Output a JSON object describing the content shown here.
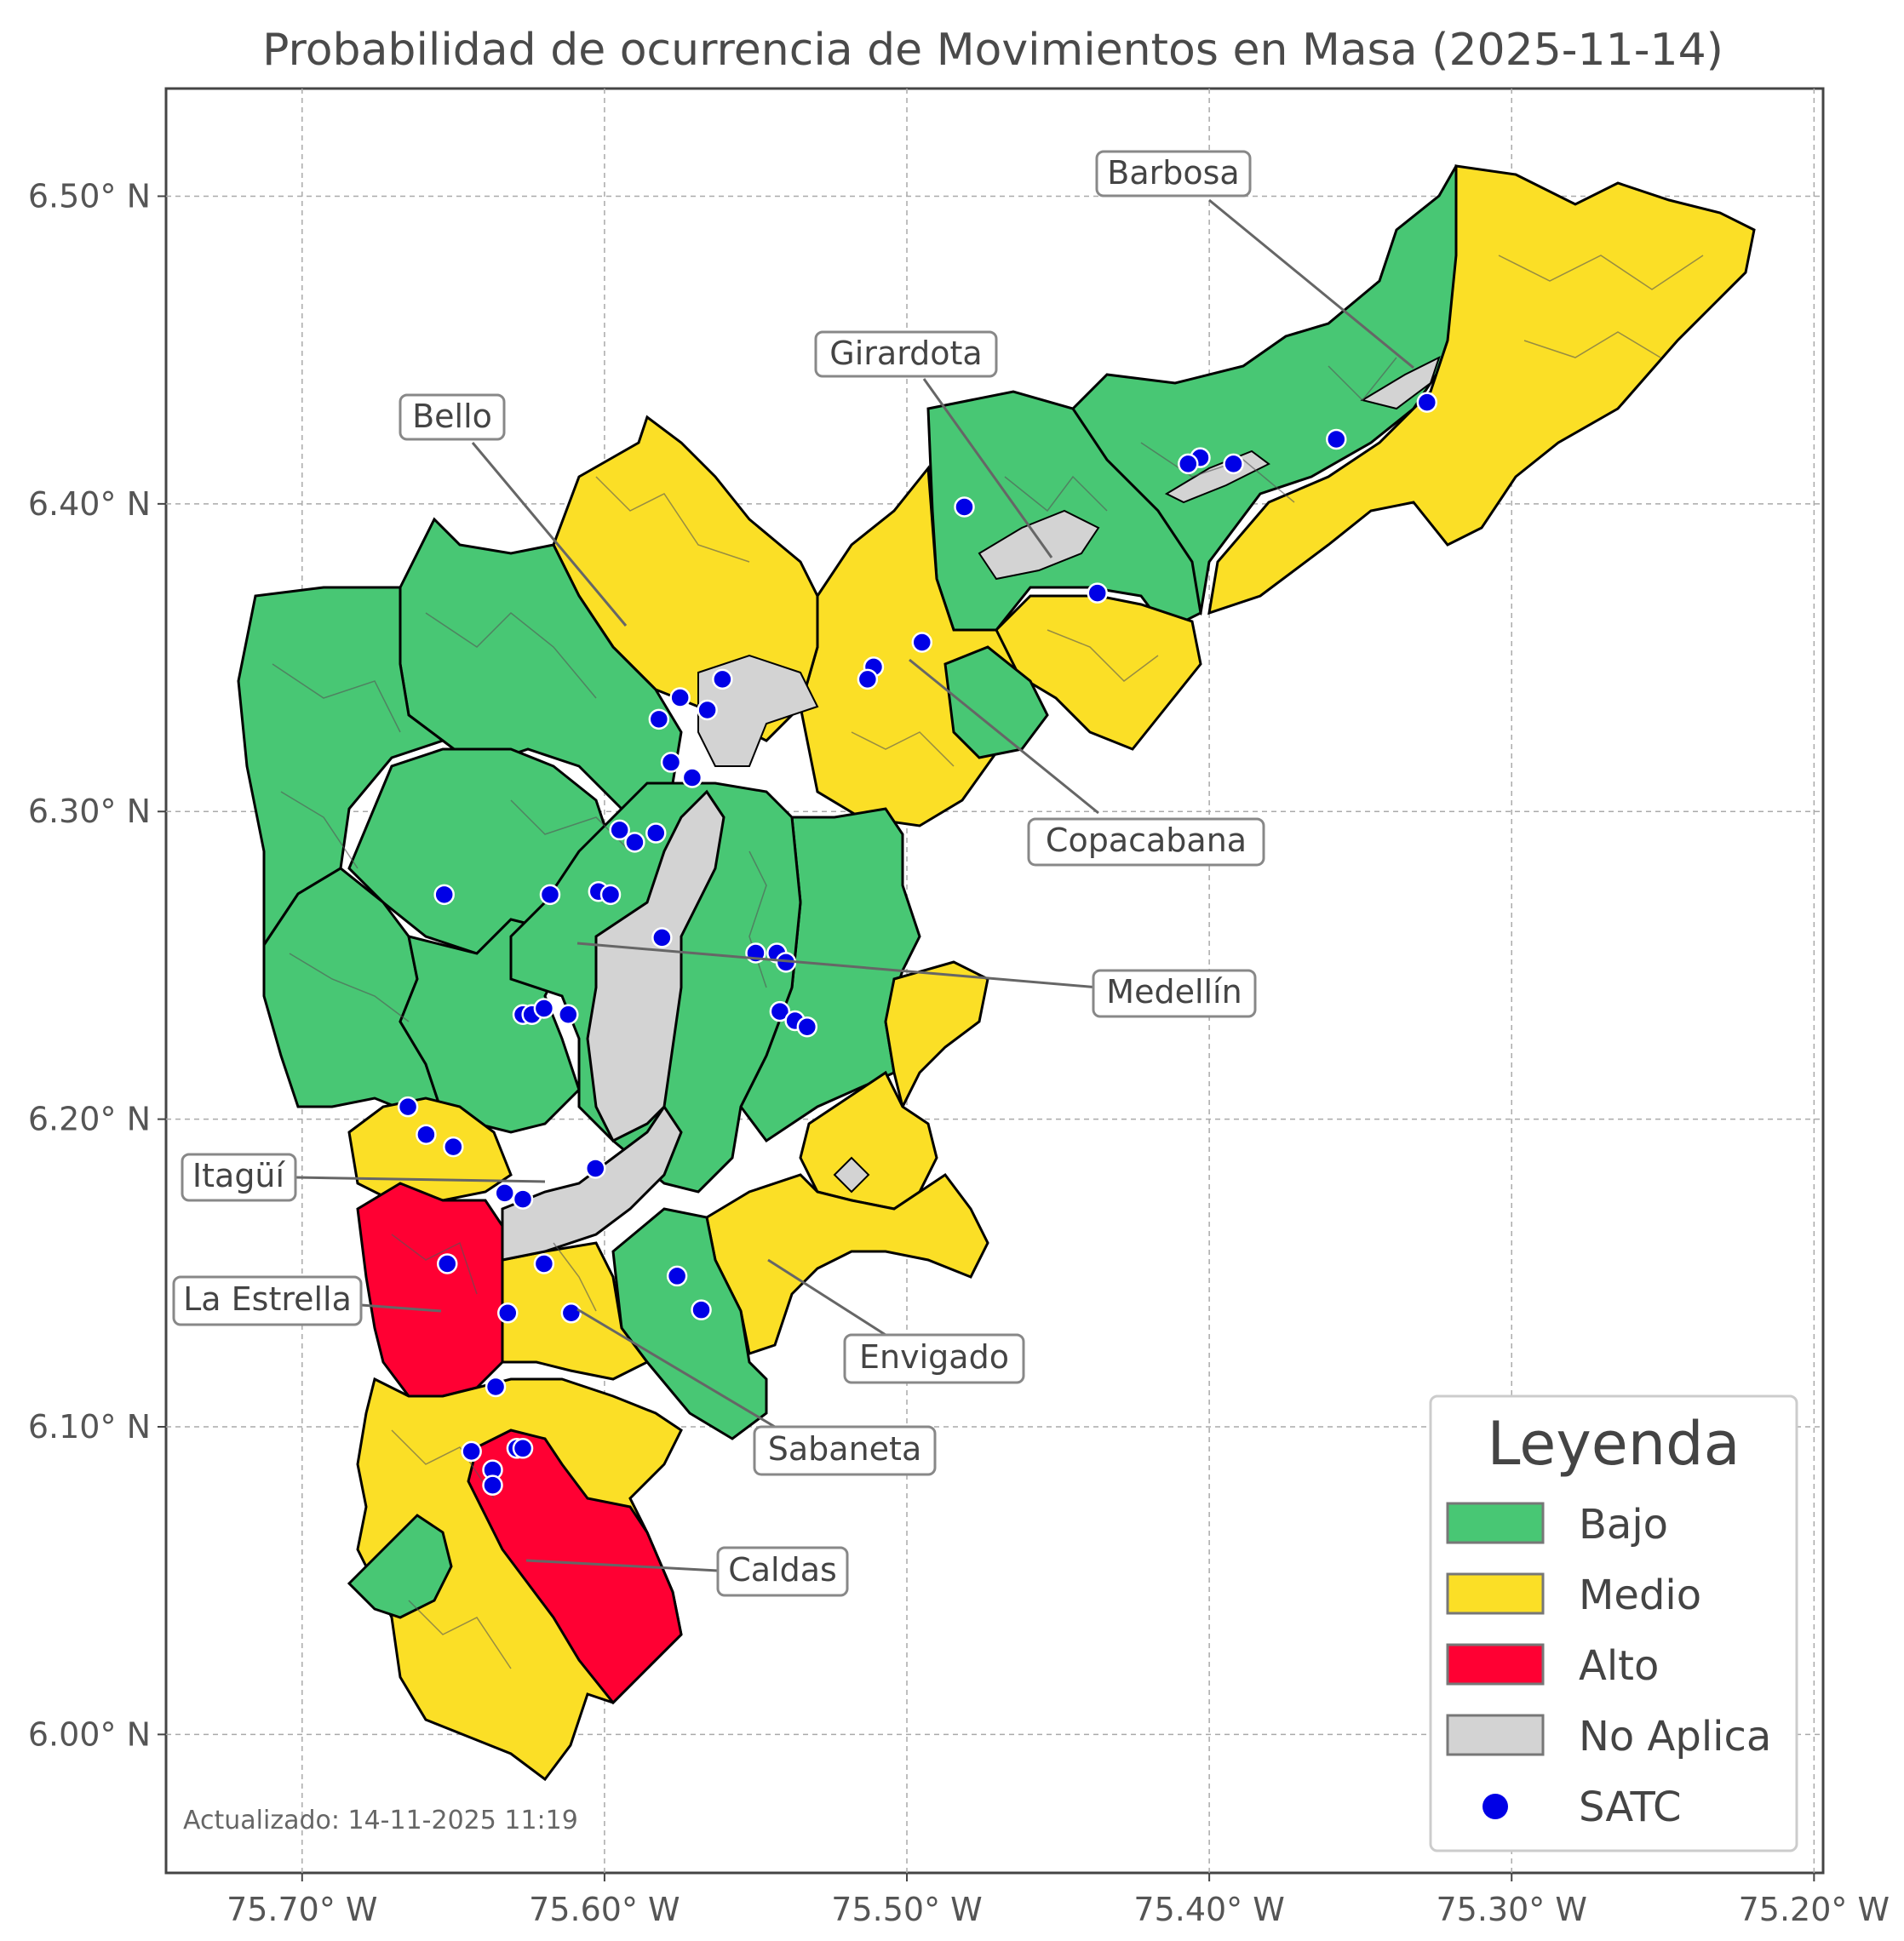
{
  "title": "Probabilidad de ocurrencia de Movimientos en Masa (2025-11-14)",
  "updated": "Actualizado: 14-11-2025 11:19",
  "colors": {
    "bajo": "#48c774",
    "medio": "#fbdf26",
    "alto": "#ff0033",
    "no_aplica": "#d3d3d3",
    "satc": "#0000e6"
  },
  "axes": {
    "lon_range": [
      -75.745,
      -75.197
    ],
    "lat_range": [
      5.955,
      6.535
    ],
    "x_ticks": [
      {
        "value": -75.7,
        "label": "75.70° W"
      },
      {
        "value": -75.6,
        "label": "75.60° W"
      },
      {
        "value": -75.5,
        "label": "75.50° W"
      },
      {
        "value": -75.4,
        "label": "75.40° W"
      },
      {
        "value": -75.3,
        "label": "75.30° W"
      },
      {
        "value": -75.2,
        "label": "75.20° W"
      }
    ],
    "y_ticks": [
      {
        "value": 6.5,
        "label": "6.50° N"
      },
      {
        "value": 6.4,
        "label": "6.40° N"
      },
      {
        "value": 6.3,
        "label": "6.30° N"
      },
      {
        "value": 6.2,
        "label": "6.20° N"
      },
      {
        "value": 6.1,
        "label": "6.10° N"
      },
      {
        "value": 6.0,
        "label": "6.00° N"
      }
    ],
    "grid": true
  },
  "municipalities": [
    {
      "name": "Barbosa",
      "lon": -75.332,
      "lat": 6.445
    },
    {
      "name": "Girardota",
      "lon": -75.45,
      "lat": 6.382
    },
    {
      "name": "Bello",
      "lon": -75.592,
      "lat": 6.36
    },
    {
      "name": "Copacabana",
      "lon": -75.498,
      "lat": 6.353
    },
    {
      "name": "Medellín",
      "lon": -75.61,
      "lat": 6.257
    },
    {
      "name": "Itagüí",
      "lon": -75.617,
      "lat": 6.178
    },
    {
      "name": "La Estrella",
      "lon": -75.648,
      "lat": 6.137
    },
    {
      "name": "Envigado",
      "lon": -75.543,
      "lat": 6.153
    },
    {
      "name": "Sabaneta",
      "lon": -75.61,
      "lat": 6.137
    },
    {
      "name": "Caldas",
      "lon": -75.626,
      "lat": 6.055
    }
  ],
  "legend": {
    "title": "Leyenda",
    "items": [
      {
        "label": "Bajo",
        "kind": "patch",
        "color": "#48c774"
      },
      {
        "label": "Medio",
        "kind": "patch",
        "color": "#fbdf26"
      },
      {
        "label": "Alto",
        "kind": "patch",
        "color": "#ff0033"
      },
      {
        "label": "No Aplica",
        "kind": "patch",
        "color": "#d3d3d3"
      },
      {
        "label": "SATC",
        "kind": "point",
        "color": "#0000e6"
      }
    ]
  },
  "satc_stations": [
    [
      -75.328,
      6.433
    ],
    [
      -75.358,
      6.421
    ],
    [
      -75.392,
      6.413
    ],
    [
      -75.403,
      6.415
    ],
    [
      -75.407,
      6.413
    ],
    [
      -75.481,
      6.399
    ],
    [
      -75.437,
      6.371
    ],
    [
      -75.495,
      6.355
    ],
    [
      -75.511,
      6.347
    ],
    [
      -75.513,
      6.343
    ],
    [
      -75.561,
      6.343
    ],
    [
      -75.566,
      6.333
    ],
    [
      -75.575,
      6.337
    ],
    [
      -75.582,
      6.33
    ],
    [
      -75.578,
      6.316
    ],
    [
      -75.571,
      6.311
    ],
    [
      -75.595,
      6.294
    ],
    [
      -75.59,
      6.29
    ],
    [
      -75.583,
      6.293
    ],
    [
      -75.653,
      6.273
    ],
    [
      -75.618,
      6.273
    ],
    [
      -75.602,
      6.274
    ],
    [
      -75.598,
      6.273
    ],
    [
      -75.581,
      6.259
    ],
    [
      -75.55,
      6.254
    ],
    [
      -75.543,
      6.254
    ],
    [
      -75.54,
      6.251
    ],
    [
      -75.542,
      6.235
    ],
    [
      -75.537,
      6.232
    ],
    [
      -75.533,
      6.23
    ],
    [
      -75.627,
      6.234
    ],
    [
      -75.624,
      6.234
    ],
    [
      -75.62,
      6.236
    ],
    [
      -75.612,
      6.234
    ],
    [
      -75.665,
      6.204
    ],
    [
      -75.659,
      6.195
    ],
    [
      -75.65,
      6.191
    ],
    [
      -75.603,
      6.184
    ],
    [
      -75.633,
      6.176
    ],
    [
      -75.627,
      6.174
    ],
    [
      -75.652,
      6.153
    ],
    [
      -75.62,
      6.153
    ],
    [
      -75.576,
      6.149
    ],
    [
      -75.611,
      6.137
    ],
    [
      -75.568,
      6.138
    ],
    [
      -75.632,
      6.137
    ],
    [
      -75.636,
      6.113
    ],
    [
      -75.644,
      6.092
    ],
    [
      -75.629,
      6.093
    ],
    [
      -75.627,
      6.093
    ],
    [
      -75.637,
      6.086
    ],
    [
      -75.637,
      6.081
    ]
  ]
}
